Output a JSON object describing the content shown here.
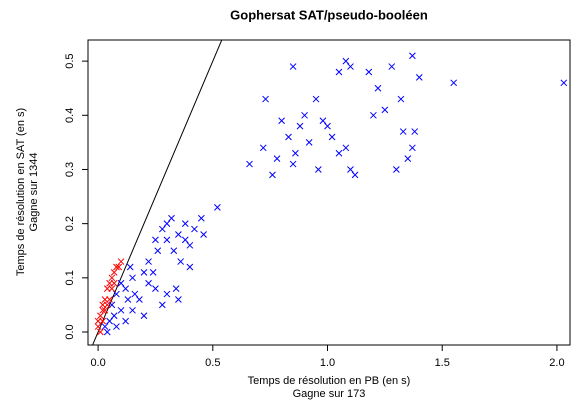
{
  "chart_data": {
    "type": "scatter",
    "title": "Gophersat SAT/pseudo-booléen",
    "x_label": "Temps de résolution en PB (en s)",
    "x_sublabel": "Gagne sur  173",
    "y_label": "Temps de résolution en SAT (en s)",
    "y_sublabel": "Gagne sur  1344",
    "xlim": [
      -0.044,
      2.057
    ],
    "ylim": [
      -0.024,
      0.539
    ],
    "xticks": [
      {
        "value": 0,
        "label": "0.0"
      },
      0.5,
      {
        "value": 1,
        "label": "1.0"
      },
      1.5,
      {
        "value": 2,
        "label": "2.0"
      }
    ],
    "yticks": [
      {
        "value": 0,
        "label": "0.0"
      },
      0.1,
      0.2,
      0.3,
      0.4,
      0.5
    ],
    "diagonal": true,
    "marker": "x",
    "series": [
      {
        "color": "#0000ff",
        "x": [
          0.85,
          1.08,
          1.37,
          1.55,
          2.03,
          1.4,
          1.18,
          1.1,
          1.05,
          0.73,
          1.22,
          1.28,
          1.32,
          0.95,
          0.88,
          0.8,
          0.9,
          1.0,
          0.92,
          0.86,
          0.78,
          0.72,
          0.66,
          0.76,
          0.96,
          1.05,
          1.1,
          1.12,
          1.2,
          1.25,
          1.33,
          1.38,
          1.37,
          1.3,
          1.35,
          0.98,
          1.02,
          1.08,
          0.83,
          0.85,
          0.25,
          0.28,
          0.3,
          0.32,
          0.35,
          0.38,
          0.4,
          0.33,
          0.36,
          0.42,
          0.45,
          0.52,
          0.46,
          0.34,
          0.38,
          0.3,
          0.26,
          0.4,
          0.22,
          0.1,
          0.15,
          0.2,
          0.12,
          0.18,
          0.08,
          0.1,
          0.05,
          0.03,
          0.06,
          0.14,
          0.22,
          0.25,
          0.3,
          0.35,
          0.28,
          0.2,
          0.15,
          0.12,
          0.08,
          0.04,
          0.16,
          0.24,
          0.13,
          0.07
        ],
        "y": [
          0.49,
          0.5,
          0.51,
          0.46,
          0.46,
          0.47,
          0.48,
          0.49,
          0.48,
          0.43,
          0.45,
          0.49,
          0.43,
          0.43,
          0.38,
          0.39,
          0.4,
          0.38,
          0.35,
          0.33,
          0.32,
          0.34,
          0.31,
          0.29,
          0.3,
          0.33,
          0.3,
          0.29,
          0.4,
          0.41,
          0.37,
          0.37,
          0.34,
          0.3,
          0.32,
          0.39,
          0.36,
          0.34,
          0.36,
          0.31,
          0.17,
          0.19,
          0.2,
          0.21,
          0.18,
          0.2,
          0.16,
          0.15,
          0.13,
          0.19,
          0.21,
          0.23,
          0.18,
          0.08,
          0.17,
          0.17,
          0.15,
          0.12,
          0.13,
          0.09,
          0.1,
          0.11,
          0.08,
          0.06,
          0.07,
          0.04,
          0.02,
          0.01,
          0.05,
          0.12,
          0.09,
          0.08,
          0.07,
          0.06,
          0.05,
          0.03,
          0.04,
          0.02,
          0.01,
          0.0,
          0.07,
          0.11,
          0.06,
          0.03
        ]
      },
      {
        "color": "#ff0000",
        "x": [
          0.0,
          0.01,
          0.02,
          0.03,
          0.04,
          0.05,
          0.06,
          0.07,
          0.08,
          0.09,
          0.02,
          0.01,
          0.03,
          0.05,
          0.06,
          0.04,
          0.07,
          0.1,
          0.0,
          0.02
        ],
        "y": [
          0.01,
          0.03,
          0.05,
          0.06,
          0.08,
          0.09,
          0.1,
          0.11,
          0.12,
          0.12,
          0.02,
          0.0,
          0.04,
          0.06,
          0.08,
          0.05,
          0.09,
          0.13,
          0.02,
          0.04
        ]
      }
    ]
  }
}
